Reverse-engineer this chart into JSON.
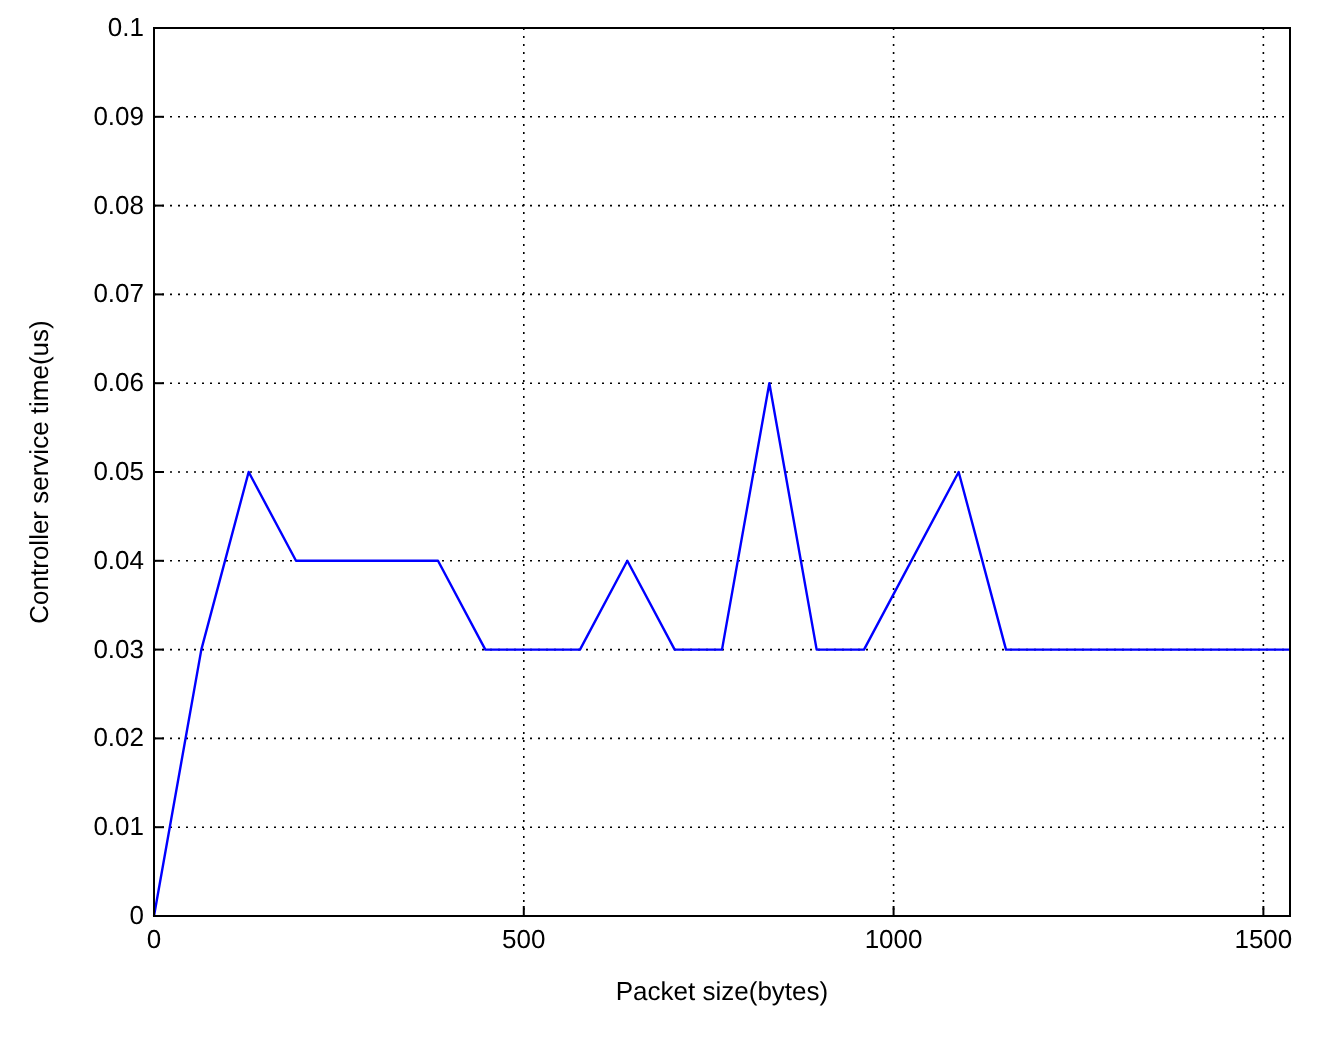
{
  "chart_data": {
    "type": "line",
    "xlabel": "Packet size(bytes)",
    "ylabel": "Controller service time(us)",
    "x": [
      0,
      64,
      128,
      192,
      384,
      448,
      576,
      640,
      704,
      768,
      832,
      896,
      960,
      1088,
      1152,
      1536
    ],
    "series": [
      {
        "color": "#0000ff",
        "values": [
          0,
          0.03,
          0.05,
          0.04,
          0.04,
          0.03,
          0.03,
          0.04,
          0.03,
          0.03,
          0.06,
          0.03,
          0.03,
          0.05,
          0.03,
          0.03
        ]
      }
    ],
    "xlim": [
      0,
      1536
    ],
    "xticks": [
      0,
      500,
      1000,
      1500
    ],
    "ylim": [
      0,
      0.1
    ],
    "yticks": [
      0,
      0.01,
      0.02,
      0.03,
      0.04,
      0.05,
      0.06,
      0.07,
      0.08,
      0.09,
      0.1
    ],
    "grid": true,
    "marker": "none",
    "line_style": "solid"
  }
}
